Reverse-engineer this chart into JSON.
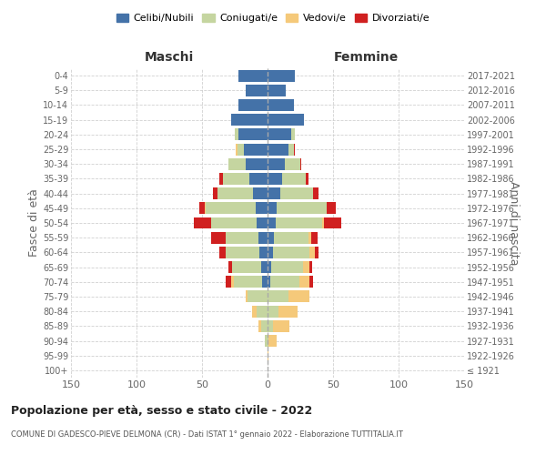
{
  "age_groups": [
    "100+",
    "95-99",
    "90-94",
    "85-89",
    "80-84",
    "75-79",
    "70-74",
    "65-69",
    "60-64",
    "55-59",
    "50-54",
    "45-49",
    "40-44",
    "35-39",
    "30-34",
    "25-29",
    "20-24",
    "15-19",
    "10-14",
    "5-9",
    "0-4"
  ],
  "birth_years": [
    "≤ 1921",
    "1922-1926",
    "1927-1931",
    "1932-1936",
    "1937-1941",
    "1942-1946",
    "1947-1951",
    "1952-1956",
    "1957-1961",
    "1962-1966",
    "1967-1971",
    "1972-1976",
    "1977-1981",
    "1982-1986",
    "1987-1991",
    "1992-1996",
    "1997-2001",
    "2002-2006",
    "2007-2011",
    "2012-2016",
    "2017-2021"
  ],
  "maschi": {
    "celibi": [
      0,
      0,
      0,
      0,
      0,
      0,
      4,
      5,
      6,
      7,
      8,
      9,
      11,
      14,
      17,
      18,
      22,
      28,
      22,
      17,
      22
    ],
    "coniugati": [
      0,
      0,
      2,
      5,
      8,
      15,
      22,
      22,
      26,
      25,
      35,
      38,
      27,
      20,
      13,
      5,
      3,
      0,
      0,
      0,
      0
    ],
    "vedovi": [
      0,
      0,
      0,
      2,
      4,
      2,
      2,
      0,
      0,
      0,
      0,
      1,
      0,
      0,
      0,
      1,
      0,
      0,
      0,
      0,
      0
    ],
    "divorziati": [
      0,
      0,
      0,
      0,
      0,
      0,
      4,
      3,
      5,
      11,
      13,
      4,
      4,
      3,
      0,
      0,
      0,
      0,
      0,
      0,
      0
    ]
  },
  "femmine": {
    "nubili": [
      0,
      0,
      0,
      0,
      0,
      0,
      2,
      3,
      4,
      5,
      6,
      7,
      10,
      11,
      13,
      16,
      18,
      28,
      20,
      14,
      21
    ],
    "coniugate": [
      0,
      0,
      1,
      4,
      8,
      16,
      22,
      24,
      28,
      26,
      36,
      38,
      25,
      18,
      12,
      4,
      3,
      0,
      0,
      0,
      0
    ],
    "vedove": [
      0,
      1,
      6,
      13,
      15,
      16,
      8,
      5,
      4,
      2,
      1,
      0,
      0,
      0,
      0,
      0,
      0,
      0,
      0,
      0,
      0
    ],
    "divorziate": [
      0,
      0,
      0,
      0,
      0,
      0,
      3,
      2,
      3,
      5,
      13,
      7,
      4,
      2,
      1,
      1,
      0,
      0,
      0,
      0,
      0
    ]
  },
  "colors": {
    "celibi": "#4472a8",
    "coniugati": "#c5d5a0",
    "vedovi": "#f5c97a",
    "divorziati": "#d02020"
  },
  "xlim": 150,
  "title": "Popolazione per età, sesso e stato civile - 2022",
  "subtitle": "COMUNE DI GADESCO-PIEVE DELMONA (CR) - Dati ISTAT 1° gennaio 2022 - Elaborazione TUTTITALIA.IT",
  "ylabel_left": "Fasce di età",
  "ylabel_right": "Anni di nascita",
  "xlabel_left": "Maschi",
  "xlabel_right": "Femmine",
  "legend_labels": [
    "Celibi/Nubili",
    "Coniugati/e",
    "Vedovi/e",
    "Divorziati/e"
  ],
  "bg_color": "#ffffff",
  "grid_color": "#cccccc"
}
